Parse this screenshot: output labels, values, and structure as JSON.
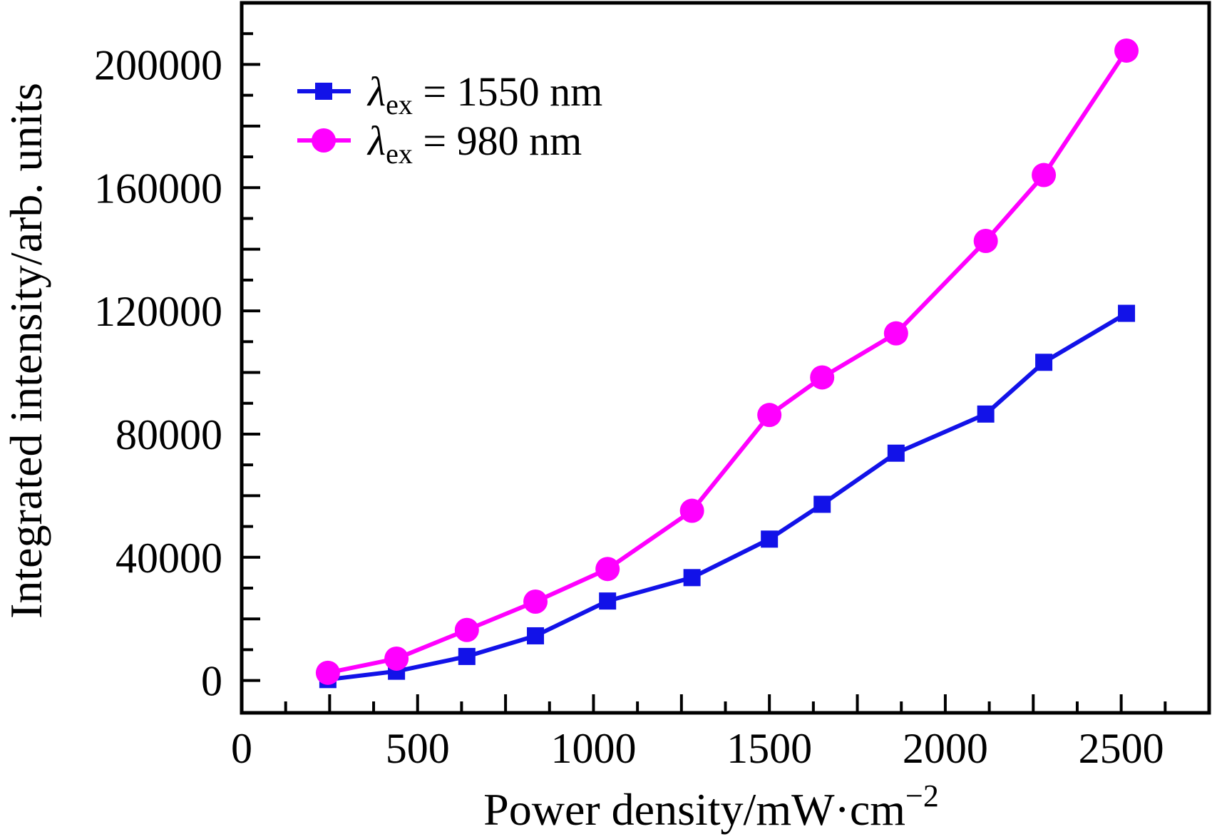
{
  "figure": {
    "background": "#ffffff",
    "axis_color": "#000000"
  },
  "chart_data": {
    "type": "line",
    "title": "",
    "xlabel": {
      "text": "Power density/mW·cm",
      "superscript": "−2"
    },
    "ylabel": "Integrated intensity/arb. units",
    "xlim": [
      0,
      2750
    ],
    "ylim": [
      -10500,
      220000
    ],
    "grid": false,
    "legend_position": "top-left-inside",
    "x_ticks": {
      "minor_step": 125,
      "long_step": 250,
      "labels": [
        {
          "v": 0,
          "t": "0"
        },
        {
          "v": 500,
          "t": "500"
        },
        {
          "v": 1000,
          "t": "1000"
        },
        {
          "v": 1500,
          "t": "1500"
        },
        {
          "v": 2000,
          "t": "2000"
        },
        {
          "v": 2500,
          "t": "2500"
        }
      ]
    },
    "y_ticks": {
      "minor_step": 10000,
      "long_step": 20000,
      "labels": [
        {
          "v": 0,
          "t": "0"
        },
        {
          "v": 40000,
          "t": "40000"
        },
        {
          "v": 80000,
          "t": "80000"
        },
        {
          "v": 120000,
          "t": "120000"
        },
        {
          "v": 160000,
          "t": "160000"
        },
        {
          "v": 200000,
          "t": "200000"
        }
      ]
    },
    "legend": {
      "entries": [
        {
          "series_id": "1550nm",
          "lambda": "λ",
          "subscript": "ex",
          "rest": " = 1550 nm"
        },
        {
          "series_id": "980nm",
          "lambda": "λ",
          "subscript": "ex",
          "rest": " = 980 nm"
        }
      ]
    },
    "series": [
      {
        "id": "1550nm",
        "label": "λex = 1550 nm",
        "color": "#1212e8",
        "marker": "square",
        "x": [
          245,
          440,
          640,
          835,
          1040,
          1280,
          1500,
          1650,
          1860,
          2115,
          2280,
          2515
        ],
        "y": [
          300,
          3000,
          7800,
          14500,
          25800,
          33400,
          45900,
          57200,
          73800,
          86500,
          103300,
          119200
        ]
      },
      {
        "id": "980nm",
        "label": "λex = 980 nm",
        "color": "#ff00ff",
        "marker": "circle",
        "x": [
          245,
          440,
          640,
          835,
          1040,
          1280,
          1500,
          1650,
          1860,
          2115,
          2280,
          2515
        ],
        "y": [
          2500,
          7100,
          16400,
          25600,
          36200,
          55100,
          86200,
          98400,
          112700,
          142700,
          164100,
          204500
        ]
      }
    ]
  }
}
